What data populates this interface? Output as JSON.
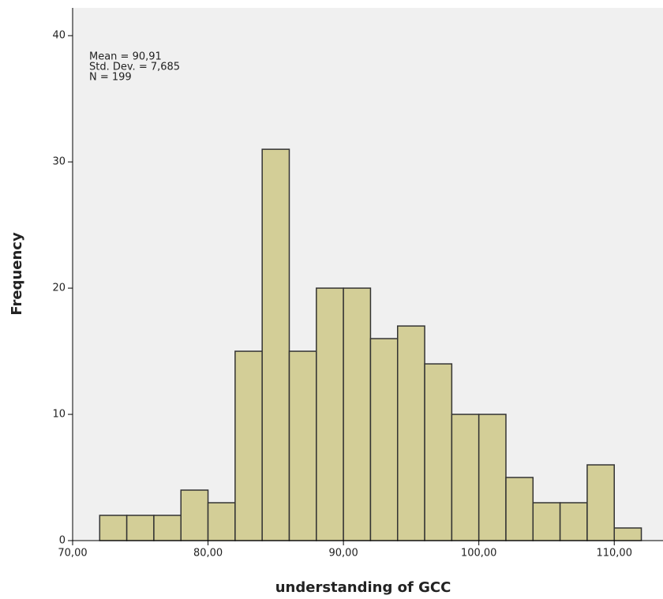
{
  "chart_data": {
    "type": "histogram",
    "x_label": "understanding of GCC",
    "y_label": "Frequency",
    "annotations": [
      "Mean = 90,91",
      "Std. Dev. = 7,685",
      "N = 199"
    ],
    "bins": [
      72,
      74,
      76,
      78,
      80,
      82,
      84,
      86,
      88,
      90,
      92,
      94,
      96,
      98,
      100,
      102,
      104,
      106,
      108,
      110,
      112
    ],
    "values": [
      2,
      2,
      2,
      4,
      3,
      15,
      31,
      15,
      20,
      20,
      16,
      17,
      14,
      10,
      10,
      5,
      3,
      3,
      6,
      1
    ],
    "color": "#d3ce97",
    "xlim": [
      70,
      113.6
    ],
    "ylim": [
      0,
      42.2
    ],
    "xticks": [
      {
        "value": 70,
        "label": "70,00"
      },
      {
        "value": 80,
        "label": "80,00"
      },
      {
        "value": 90,
        "label": "90,00"
      },
      {
        "value": 100,
        "label": "100,00"
      },
      {
        "value": 110,
        "label": "110,00"
      }
    ],
    "yticks": [
      0,
      10,
      20,
      30,
      40
    ]
  }
}
